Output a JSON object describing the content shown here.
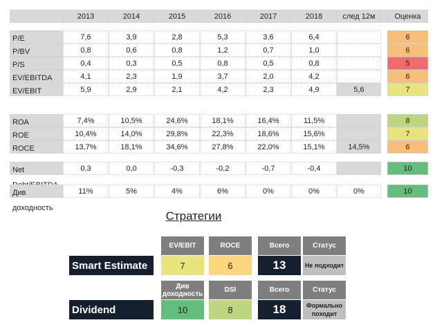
{
  "header": {
    "columns": [
      "2013",
      "2014",
      "2015",
      "2016",
      "2017",
      "2018",
      "след 12м"
    ],
    "score": "Оценка"
  },
  "groups": [
    [
      {
        "label": "P/E",
        "values": [
          "7,6",
          "3,9",
          "2,8",
          "5,3",
          "3,6",
          "6,4"
        ],
        "next": "",
        "score": "6",
        "color": "o"
      },
      {
        "label": "P/BV",
        "values": [
          "0,8",
          "0,6",
          "0,8",
          "1,2",
          "0,7",
          "1,0"
        ],
        "next": "",
        "score": "6",
        "color": "o"
      },
      {
        "label": "P/S",
        "values": [
          "0,4",
          "0,3",
          "0,5",
          "0,8",
          "0,5",
          "0,8"
        ],
        "next": "",
        "score": "5",
        "color": "r"
      },
      {
        "label": "EV/EBITDA",
        "values": [
          "4,1",
          "2,3",
          "1,9",
          "3,7",
          "2,0",
          "4,2"
        ],
        "next": "",
        "score": "6",
        "color": "o"
      },
      {
        "label": "EV/EBIT",
        "values": [
          "5,9",
          "2,9",
          "2,1",
          "4,2",
          "2,3",
          "4,9"
        ],
        "next": "5,6",
        "nextGray": true,
        "score": "7",
        "color": "y"
      }
    ],
    [
      {
        "label": "ROA",
        "values": [
          "7,4%",
          "10,5%",
          "24,6%",
          "18,1%",
          "16,4%",
          "11,5%"
        ],
        "next": "",
        "nextGray": true,
        "score": "8",
        "color": "lg"
      },
      {
        "label": "ROE",
        "values": [
          "10,4%",
          "14,0%",
          "29,8%",
          "22,3%",
          "18,6%",
          "15,6%"
        ],
        "next": "",
        "nextGray": true,
        "score": "7",
        "color": "y"
      },
      {
        "label": "ROCE",
        "values": [
          "13,7%",
          "18,1%",
          "34,6%",
          "27,8%",
          "22,0%",
          "15,1%"
        ],
        "next": "14,5%",
        "nextGray": true,
        "score": "6",
        "color": "o"
      }
    ],
    [
      {
        "label": "Net Debt/EBITDA",
        "values": [
          "0,3",
          "0,0",
          "-0,3",
          "-0,2",
          "-0,7",
          "-0,4"
        ],
        "next": "",
        "nextGray": true,
        "score": "10",
        "color": "g"
      }
    ],
    [
      {
        "label": "Див доходность",
        "values": [
          "11%",
          "5%",
          "4%",
          "6%",
          "0%",
          "0%"
        ],
        "next": "0%",
        "score": "10",
        "color": "g"
      }
    ]
  ],
  "strategies": {
    "title": "Стратегии",
    "items": [
      {
        "name": "Smart Estimate",
        "h1": "EV/EBIT",
        "v1": "7",
        "c1": "#e8e57f",
        "h2": "ROCE",
        "v2": "6",
        "c2": "#fdd57e",
        "total_label": "Всего",
        "total": "13",
        "status_label": "Статус",
        "status": "Не подходит"
      },
      {
        "name": "Dividend",
        "h1": "Див доходность",
        "v1": "10",
        "c1": "#63bd7b",
        "h2": "DSI",
        "v2": "8",
        "c2": "#bcd77f",
        "total_label": "Всего",
        "total": "18",
        "status_label": "Статус",
        "status": "Формально походит"
      }
    ]
  },
  "colors": {
    "orange": "#f9bf78",
    "red": "#f16b6b",
    "yellow": "#e8e57f",
    "lightgreen": "#bcd77f",
    "green": "#63bd7b",
    "navy": "#15202e"
  }
}
